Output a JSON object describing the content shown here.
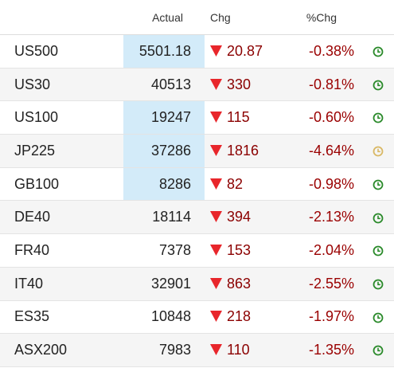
{
  "header": {
    "actual": "Actual",
    "chg": "Chg",
    "pct": "%Chg"
  },
  "rows": [
    {
      "name": "US500",
      "actual": "5501.18",
      "chg": "20.87",
      "pct": "-0.38%"
    },
    {
      "name": "US30",
      "actual": "40513",
      "chg": "330",
      "pct": "-0.81%"
    },
    {
      "name": "US100",
      "actual": "19247",
      "chg": "115",
      "pct": "-0.60%"
    },
    {
      "name": "JP225",
      "actual": "37286",
      "chg": "1816",
      "pct": "-4.64%"
    },
    {
      "name": "GB100",
      "actual": "8286",
      "chg": "82",
      "pct": "-0.98%"
    },
    {
      "name": "DE40",
      "actual": "18114",
      "chg": "394",
      "pct": "-2.13%"
    },
    {
      "name": "FR40",
      "actual": "7378",
      "chg": "153",
      "pct": "-2.04%"
    },
    {
      "name": "IT40",
      "actual": "32901",
      "chg": "863",
      "pct": "-2.55%"
    },
    {
      "name": "ES35",
      "actual": "10848",
      "chg": "218",
      "pct": "-1.97%"
    },
    {
      "name": "ASX200",
      "actual": "7983",
      "chg": "110",
      "pct": "-1.35%"
    }
  ]
}
